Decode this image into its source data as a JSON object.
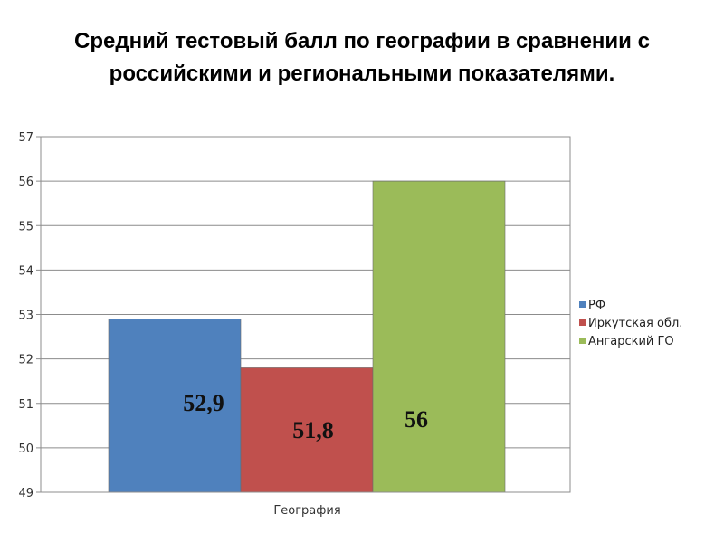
{
  "title": {
    "line1": "Средний тестовый балл по географии в сравнении с",
    "line2": "российскими и региональными показателями."
  },
  "chart_data": {
    "type": "bar",
    "categories": [
      "География"
    ],
    "series": [
      {
        "name": "РФ",
        "values": [
          52.9
        ],
        "label": "52,9",
        "color": "#4F81BD"
      },
      {
        "name": "Иркутская обл.",
        "values": [
          51.8
        ],
        "label": "51,8",
        "color": "#C0504D"
      },
      {
        "name": "Ангарский ГО",
        "values": [
          56
        ],
        "label": "56",
        "color": "#9BBB59"
      }
    ],
    "ylim": [
      49,
      57
    ],
    "yticks": [
      49,
      50,
      51,
      52,
      53,
      54,
      55,
      56,
      57
    ],
    "grid": true,
    "legend_position": "right"
  }
}
